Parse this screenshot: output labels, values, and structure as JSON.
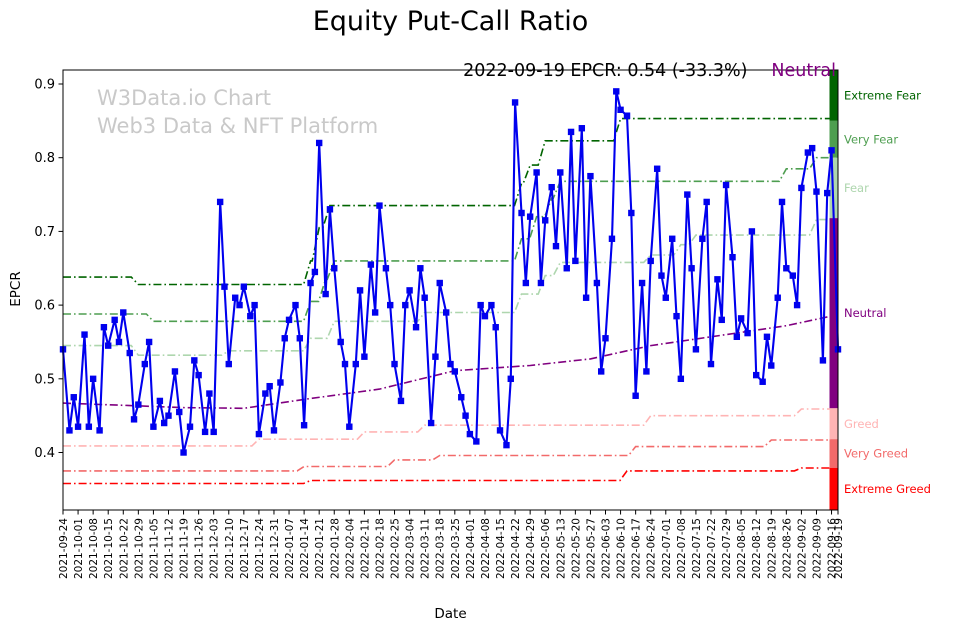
{
  "title": "Equity Put-Call Ratio",
  "watermark": {
    "line1": "W3Data.io Chart",
    "line2": "Web3 Data & NFT Platform"
  },
  "annotation": {
    "text": "2022-09-19 EPCR: 0.54 (-33.3%)",
    "status": "Neutral",
    "status_color": "#800080"
  },
  "chart_data": {
    "type": "line",
    "title": "Equity Put-Call Ratio",
    "xlabel": "Date",
    "ylabel": "EPCR",
    "ylim": [
      0.322,
      0.919
    ],
    "y_ticks": [
      0.4,
      0.5,
      0.6,
      0.7,
      0.8,
      0.9
    ],
    "grid": false,
    "legend": "none",
    "x_tick_labels": [
      "2021-09-24",
      "2021-10-01",
      "2021-10-08",
      "2021-10-15",
      "2021-10-22",
      "2021-10-29",
      "2021-11-05",
      "2021-11-12",
      "2021-11-19",
      "2021-11-26",
      "2021-12-03",
      "2021-12-10",
      "2021-12-17",
      "2021-12-24",
      "2021-12-31",
      "2022-01-07",
      "2022-01-14",
      "2022-01-21",
      "2022-01-28",
      "2022-02-04",
      "2022-02-11",
      "2022-02-18",
      "2022-02-25",
      "2022-03-04",
      "2022-03-11",
      "2022-03-18",
      "2022-03-25",
      "2022-04-01",
      "2022-04-08",
      "2022-04-15",
      "2022-04-22",
      "2022-04-29",
      "2022-05-06",
      "2022-05-13",
      "2022-05-20",
      "2022-05-27",
      "2022-06-03",
      "2022-06-10",
      "2022-06-17",
      "2022-06-24",
      "2022-07-01",
      "2022-07-08",
      "2022-07-15",
      "2022-07-22",
      "2022-07-29",
      "2022-08-05",
      "2022-08-12",
      "2022-08-19",
      "2022-08-26",
      "2022-09-02",
      "2022-09-09",
      "2022-09-16",
      "2022-09-19"
    ],
    "series": {
      "name": "EPCR",
      "color": "#0000ee",
      "marker": "square",
      "points": [
        [
          "2021-09-24",
          0.54
        ],
        [
          "2021-09-27",
          0.43
        ],
        [
          "2021-09-29",
          0.475
        ],
        [
          "2021-10-01",
          0.435
        ],
        [
          "2021-10-04",
          0.56
        ],
        [
          "2021-10-06",
          0.435
        ],
        [
          "2021-10-08",
          0.5
        ],
        [
          "2021-10-11",
          0.43
        ],
        [
          "2021-10-13",
          0.57
        ],
        [
          "2021-10-15",
          0.545
        ],
        [
          "2021-10-18",
          0.58
        ],
        [
          "2021-10-20",
          0.55
        ],
        [
          "2021-10-22",
          0.59
        ],
        [
          "2021-10-25",
          0.535
        ],
        [
          "2021-10-27",
          0.445
        ],
        [
          "2021-10-29",
          0.465
        ],
        [
          "2021-11-01",
          0.52
        ],
        [
          "2021-11-03",
          0.55
        ],
        [
          "2021-11-05",
          0.435
        ],
        [
          "2021-11-08",
          0.47
        ],
        [
          "2021-11-10",
          0.44
        ],
        [
          "2021-11-12",
          0.45
        ],
        [
          "2021-11-15",
          0.51
        ],
        [
          "2021-11-17",
          0.455
        ],
        [
          "2021-11-19",
          0.4
        ],
        [
          "2021-11-22",
          0.435
        ],
        [
          "2021-11-24",
          0.525
        ],
        [
          "2021-11-26",
          0.505
        ],
        [
          "2021-11-29",
          0.428
        ],
        [
          "2021-12-01",
          0.48
        ],
        [
          "2021-12-03",
          0.428
        ],
        [
          "2021-12-06",
          0.74
        ],
        [
          "2021-12-08",
          0.625
        ],
        [
          "2021-12-10",
          0.52
        ],
        [
          "2021-12-13",
          0.61
        ],
        [
          "2021-12-15",
          0.6
        ],
        [
          "2021-12-17",
          0.625
        ],
        [
          "2021-12-20",
          0.585
        ],
        [
          "2021-12-22",
          0.6
        ],
        [
          "2021-12-24",
          0.425
        ],
        [
          "2021-12-27",
          0.48
        ],
        [
          "2021-12-29",
          0.49
        ],
        [
          "2021-12-31",
          0.43
        ],
        [
          "2022-01-03",
          0.495
        ],
        [
          "2022-01-05",
          0.555
        ],
        [
          "2022-01-07",
          0.58
        ],
        [
          "2022-01-10",
          0.6
        ],
        [
          "2022-01-12",
          0.555
        ],
        [
          "2022-01-14",
          0.437
        ],
        [
          "2022-01-17",
          0.63
        ],
        [
          "2022-01-19",
          0.645
        ],
        [
          "2022-01-21",
          0.82
        ],
        [
          "2022-01-24",
          0.615
        ],
        [
          "2022-01-26",
          0.73
        ],
        [
          "2022-01-28",
          0.65
        ],
        [
          "2022-01-31",
          0.55
        ],
        [
          "2022-02-02",
          0.52
        ],
        [
          "2022-02-04",
          0.435
        ],
        [
          "2022-02-07",
          0.52
        ],
        [
          "2022-02-09",
          0.62
        ],
        [
          "2022-02-11",
          0.53
        ],
        [
          "2022-02-14",
          0.655
        ],
        [
          "2022-02-16",
          0.59
        ],
        [
          "2022-02-18",
          0.735
        ],
        [
          "2022-02-21",
          0.65
        ],
        [
          "2022-02-23",
          0.6
        ],
        [
          "2022-02-25",
          0.52
        ],
        [
          "2022-02-28",
          0.47
        ],
        [
          "2022-03-02",
          0.6
        ],
        [
          "2022-03-04",
          0.62
        ],
        [
          "2022-03-07",
          0.57
        ],
        [
          "2022-03-09",
          0.65
        ],
        [
          "2022-03-11",
          0.61
        ],
        [
          "2022-03-14",
          0.44
        ],
        [
          "2022-03-16",
          0.53
        ],
        [
          "2022-03-18",
          0.63
        ],
        [
          "2022-03-21",
          0.59
        ],
        [
          "2022-03-23",
          0.52
        ],
        [
          "2022-03-25",
          0.51
        ],
        [
          "2022-03-28",
          0.475
        ],
        [
          "2022-03-30",
          0.45
        ],
        [
          "2022-04-01",
          0.425
        ],
        [
          "2022-04-04",
          0.415
        ],
        [
          "2022-04-06",
          0.6
        ],
        [
          "2022-04-08",
          0.585
        ],
        [
          "2022-04-11",
          0.6
        ],
        [
          "2022-04-13",
          0.57
        ],
        [
          "2022-04-15",
          0.43
        ],
        [
          "2022-04-18",
          0.41
        ],
        [
          "2022-04-20",
          0.5
        ],
        [
          "2022-04-22",
          0.875
        ],
        [
          "2022-04-25",
          0.725
        ],
        [
          "2022-04-27",
          0.63
        ],
        [
          "2022-04-29",
          0.72
        ],
        [
          "2022-05-02",
          0.78
        ],
        [
          "2022-05-04",
          0.63
        ],
        [
          "2022-05-06",
          0.715
        ],
        [
          "2022-05-09",
          0.76
        ],
        [
          "2022-05-11",
          0.68
        ],
        [
          "2022-05-13",
          0.78
        ],
        [
          "2022-05-16",
          0.65
        ],
        [
          "2022-05-18",
          0.835
        ],
        [
          "2022-05-20",
          0.66
        ],
        [
          "2022-05-23",
          0.84
        ],
        [
          "2022-05-25",
          0.61
        ],
        [
          "2022-05-27",
          0.775
        ],
        [
          "2022-05-30",
          0.63
        ],
        [
          "2022-06-01",
          0.51
        ],
        [
          "2022-06-03",
          0.555
        ],
        [
          "2022-06-06",
          0.69
        ],
        [
          "2022-06-08",
          0.89
        ],
        [
          "2022-06-10",
          0.865
        ],
        [
          "2022-06-13",
          0.857
        ],
        [
          "2022-06-15",
          0.725
        ],
        [
          "2022-06-17",
          0.477
        ],
        [
          "2022-06-20",
          0.63
        ],
        [
          "2022-06-22",
          0.51
        ],
        [
          "2022-06-24",
          0.66
        ],
        [
          "2022-06-27",
          0.785
        ],
        [
          "2022-06-29",
          0.64
        ],
        [
          "2022-07-01",
          0.61
        ],
        [
          "2022-07-04",
          0.69
        ],
        [
          "2022-07-06",
          0.585
        ],
        [
          "2022-07-08",
          0.5
        ],
        [
          "2022-07-11",
          0.75
        ],
        [
          "2022-07-13",
          0.65
        ],
        [
          "2022-07-15",
          0.54
        ],
        [
          "2022-07-18",
          0.69
        ],
        [
          "2022-07-20",
          0.74
        ],
        [
          "2022-07-22",
          0.52
        ],
        [
          "2022-07-25",
          0.635
        ],
        [
          "2022-07-27",
          0.58
        ],
        [
          "2022-07-29",
          0.763
        ],
        [
          "2022-08-01",
          0.665
        ],
        [
          "2022-08-03",
          0.557
        ],
        [
          "2022-08-05",
          0.582
        ],
        [
          "2022-08-08",
          0.562
        ],
        [
          "2022-08-10",
          0.7
        ],
        [
          "2022-08-12",
          0.505
        ],
        [
          "2022-08-15",
          0.496
        ],
        [
          "2022-08-17",
          0.557
        ],
        [
          "2022-08-19",
          0.518
        ],
        [
          "2022-08-22",
          0.61
        ],
        [
          "2022-08-24",
          0.74
        ],
        [
          "2022-08-26",
          0.65
        ],
        [
          "2022-08-29",
          0.64
        ],
        [
          "2022-08-31",
          0.6
        ],
        [
          "2022-09-02",
          0.759
        ],
        [
          "2022-09-05",
          0.807
        ],
        [
          "2022-09-07",
          0.813
        ],
        [
          "2022-09-09",
          0.754
        ],
        [
          "2022-09-12",
          0.525
        ],
        [
          "2022-09-14",
          0.752
        ],
        [
          "2022-09-16",
          0.81
        ],
        [
          "2022-09-19",
          0.54
        ]
      ]
    },
    "thresholds": [
      {
        "name": "extreme-fear-line",
        "label": "Extreme Fear",
        "color": "#006400",
        "style": "dashdot",
        "step": true,
        "points": [
          [
            "2021-09-24",
            0.638
          ],
          [
            "2021-10-29",
            0.628
          ],
          [
            "2022-01-17",
            0.66
          ],
          [
            "2022-01-21",
            0.705
          ],
          [
            "2022-01-26",
            0.735
          ],
          [
            "2022-04-25",
            0.765
          ],
          [
            "2022-04-29",
            0.79
          ],
          [
            "2022-05-06",
            0.823
          ],
          [
            "2022-06-10",
            0.853
          ],
          [
            "2022-09-19",
            0.853
          ]
        ]
      },
      {
        "name": "very-fear-line",
        "label": "Very Fear",
        "color": "#4e9e50",
        "style": "dashdot",
        "step": true,
        "points": [
          [
            "2021-09-24",
            0.588
          ],
          [
            "2021-11-05",
            0.578
          ],
          [
            "2022-01-17",
            0.605
          ],
          [
            "2022-01-24",
            0.635
          ],
          [
            "2022-01-28",
            0.66
          ],
          [
            "2022-04-25",
            0.69
          ],
          [
            "2022-05-02",
            0.72
          ],
          [
            "2022-05-09",
            0.745
          ],
          [
            "2022-05-13",
            0.768
          ],
          [
            "2022-08-26",
            0.785
          ],
          [
            "2022-09-09",
            0.8
          ],
          [
            "2022-09-19",
            0.8
          ]
        ]
      },
      {
        "name": "fear-line",
        "label": "Fear",
        "color": "#aed6ae",
        "style": "dashdot",
        "step": true,
        "points": [
          [
            "2021-09-24",
            0.545
          ],
          [
            "2021-10-29",
            0.532
          ],
          [
            "2021-12-10",
            0.538
          ],
          [
            "2022-01-17",
            0.555
          ],
          [
            "2022-01-28",
            0.578
          ],
          [
            "2022-03-11",
            0.59
          ],
          [
            "2022-04-25",
            0.615
          ],
          [
            "2022-05-06",
            0.64
          ],
          [
            "2022-05-13",
            0.658
          ],
          [
            "2022-06-24",
            0.668
          ],
          [
            "2022-07-08",
            0.682
          ],
          [
            "2022-07-15",
            0.695
          ],
          [
            "2022-09-09",
            0.716
          ],
          [
            "2022-09-19",
            0.716
          ]
        ]
      },
      {
        "name": "neutral-line",
        "label": "Neutral",
        "color": "#800080",
        "style": "dashdot",
        "step": false,
        "points": [
          [
            "2021-09-24",
            0.467
          ],
          [
            "2021-10-22",
            0.464
          ],
          [
            "2021-11-19",
            0.461
          ],
          [
            "2021-12-17",
            0.46
          ],
          [
            "2022-01-14",
            0.472
          ],
          [
            "2022-02-18",
            0.486
          ],
          [
            "2022-03-25",
            0.511
          ],
          [
            "2022-04-29",
            0.518
          ],
          [
            "2022-05-27",
            0.527
          ],
          [
            "2022-06-24",
            0.545
          ],
          [
            "2022-07-29",
            0.56
          ],
          [
            "2022-08-26",
            0.572
          ],
          [
            "2022-09-19",
            0.587
          ]
        ]
      },
      {
        "name": "greed-line",
        "label": "Greed",
        "color": "#ffb4b4",
        "style": "dashdot",
        "step": true,
        "points": [
          [
            "2021-09-24",
            0.409
          ],
          [
            "2021-12-24",
            0.418
          ],
          [
            "2022-02-11",
            0.428
          ],
          [
            "2022-03-11",
            0.437
          ],
          [
            "2022-06-24",
            0.45
          ],
          [
            "2022-09-02",
            0.459
          ],
          [
            "2022-09-19",
            0.459
          ]
        ]
      },
      {
        "name": "very-greed-line",
        "label": "Very Greed",
        "color": "#f26a6a",
        "style": "dashdot",
        "step": true,
        "points": [
          [
            "2021-09-24",
            0.375
          ],
          [
            "2022-01-14",
            0.381
          ],
          [
            "2022-02-25",
            0.39
          ],
          [
            "2022-03-18",
            0.396
          ],
          [
            "2022-06-17",
            0.408
          ],
          [
            "2022-08-19",
            0.417
          ],
          [
            "2022-09-19",
            0.417
          ]
        ]
      },
      {
        "name": "extreme-greed-line",
        "label": "Extreme Greed",
        "color": "#ff0000",
        "style": "dashdot",
        "step": true,
        "points": [
          [
            "2021-09-24",
            0.358
          ],
          [
            "2022-01-17",
            0.362
          ],
          [
            "2022-06-13",
            0.375
          ],
          [
            "2022-09-02",
            0.379
          ],
          [
            "2022-09-19",
            0.379
          ]
        ]
      }
    ],
    "zones": [
      {
        "label": "Extreme Fear",
        "from": 0.919,
        "to": 0.85,
        "color": "#006400",
        "label_color": "#006400"
      },
      {
        "label": "Very Fear",
        "from": 0.85,
        "to": 0.8,
        "color": "#4e9e50",
        "label_color": "#4e9e50"
      },
      {
        "label": "Fear",
        "from": 0.8,
        "to": 0.718,
        "color": "#aed6ae",
        "label_color": "#aed6ae"
      },
      {
        "label": "Neutral",
        "from": 0.718,
        "to": 0.46,
        "color": "#800080",
        "label_color": "#800080"
      },
      {
        "label": "Greed",
        "from": 0.46,
        "to": 0.418,
        "color": "#ffb4b4",
        "label_color": "#ffb4b4"
      },
      {
        "label": "Very Greed",
        "from": 0.418,
        "to": 0.379,
        "color": "#f26a6a",
        "label_color": "#f26a6a"
      },
      {
        "label": "Extreme Greed",
        "from": 0.379,
        "to": 0.322,
        "color": "#ff0000",
        "label_color": "#ff0000"
      }
    ]
  }
}
